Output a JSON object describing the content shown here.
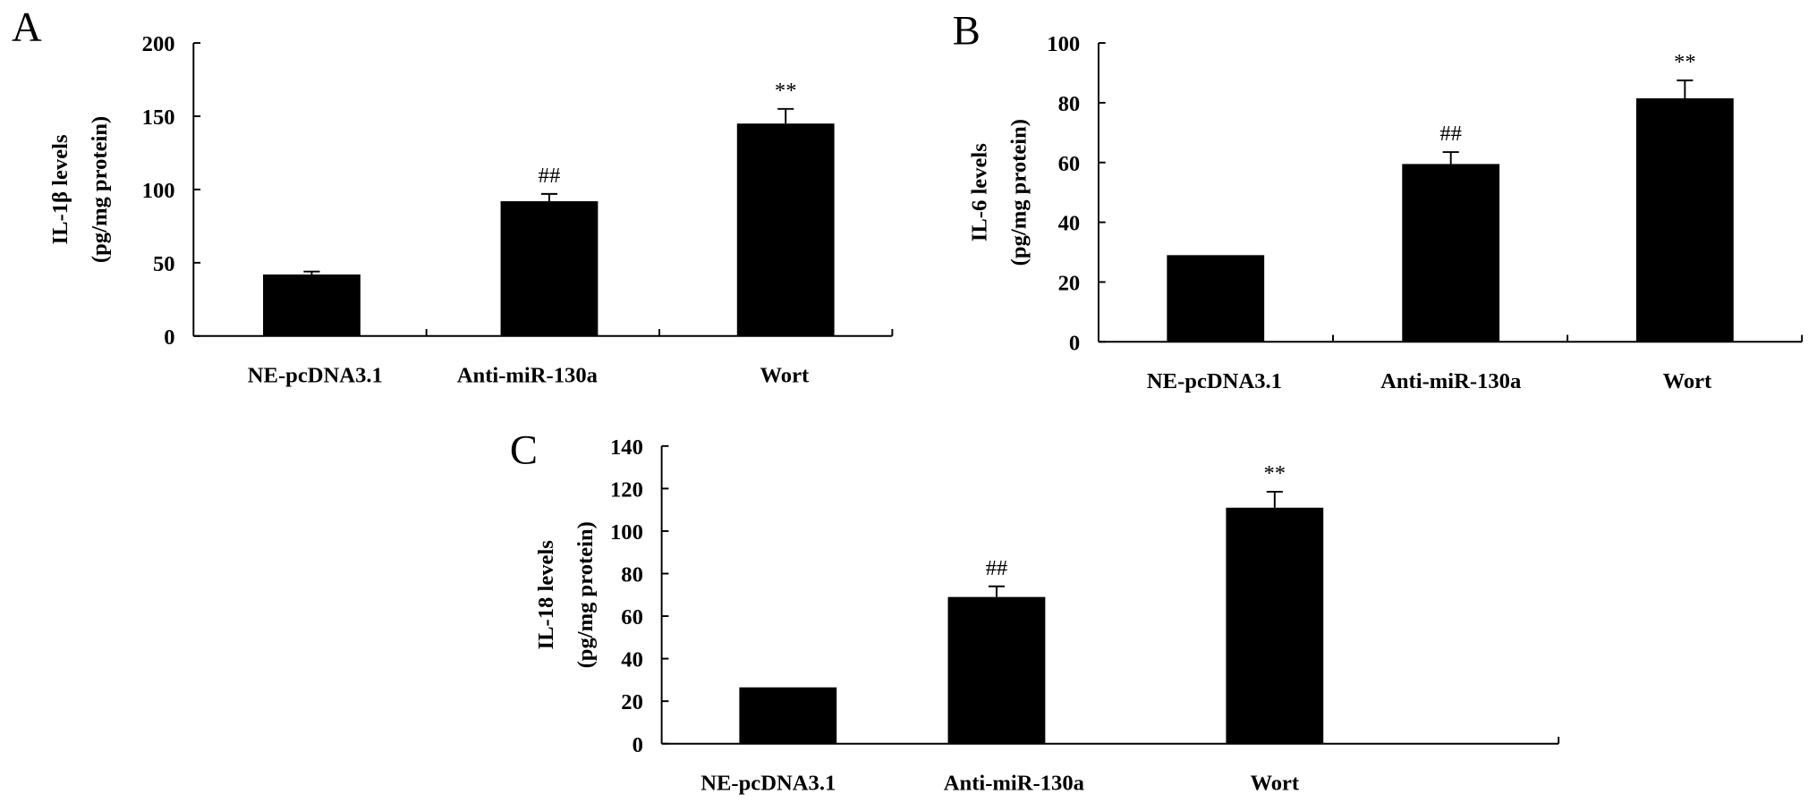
{
  "chart_data": [
    {
      "type": "bar",
      "panel_label": "A",
      "categories": [
        "NE-pcDNA3.1",
        "Anti-miR-130a",
        "Wort"
      ],
      "values": [
        42,
        92,
        145
      ],
      "errors": [
        2,
        5,
        10
      ],
      "annotations": [
        "",
        "##",
        "**"
      ],
      "ylabel_lines": [
        "IL-1β levels",
        "(pg/mg protein)"
      ],
      "ylim": [
        0,
        200
      ],
      "yticks": [
        0,
        50,
        100,
        150,
        200
      ],
      "bar_color": "#000000",
      "grid": false
    },
    {
      "type": "bar",
      "panel_label": "B",
      "categories": [
        "NE-pcDNA3.1",
        "Anti-miR-130a",
        "Wort"
      ],
      "values": [
        29,
        59.5,
        81.5
      ],
      "errors": [
        0,
        4,
        6
      ],
      "annotations": [
        "",
        "##",
        "**"
      ],
      "ylabel_lines": [
        "IL-6 levels",
        "(pg/mg protein)"
      ],
      "ylim": [
        0,
        100
      ],
      "yticks": [
        0,
        20,
        40,
        60,
        80,
        100
      ],
      "bar_color": "#000000",
      "grid": false
    },
    {
      "type": "bar",
      "panel_label": "C",
      "categories": [
        "NE-pcDNA3.1",
        "Anti-miR-130a",
        "Wort"
      ],
      "values": [
        26.5,
        69,
        111
      ],
      "errors": [
        0,
        5,
        7.5
      ],
      "annotations": [
        "",
        "##",
        "**"
      ],
      "ylabel_lines": [
        "IL-18 levels",
        "(pg/mg protein)"
      ],
      "ylim": [
        0,
        140
      ],
      "yticks": [
        0,
        20,
        40,
        60,
        80,
        100,
        120,
        140
      ],
      "bar_color": "#000000",
      "grid": false
    }
  ]
}
